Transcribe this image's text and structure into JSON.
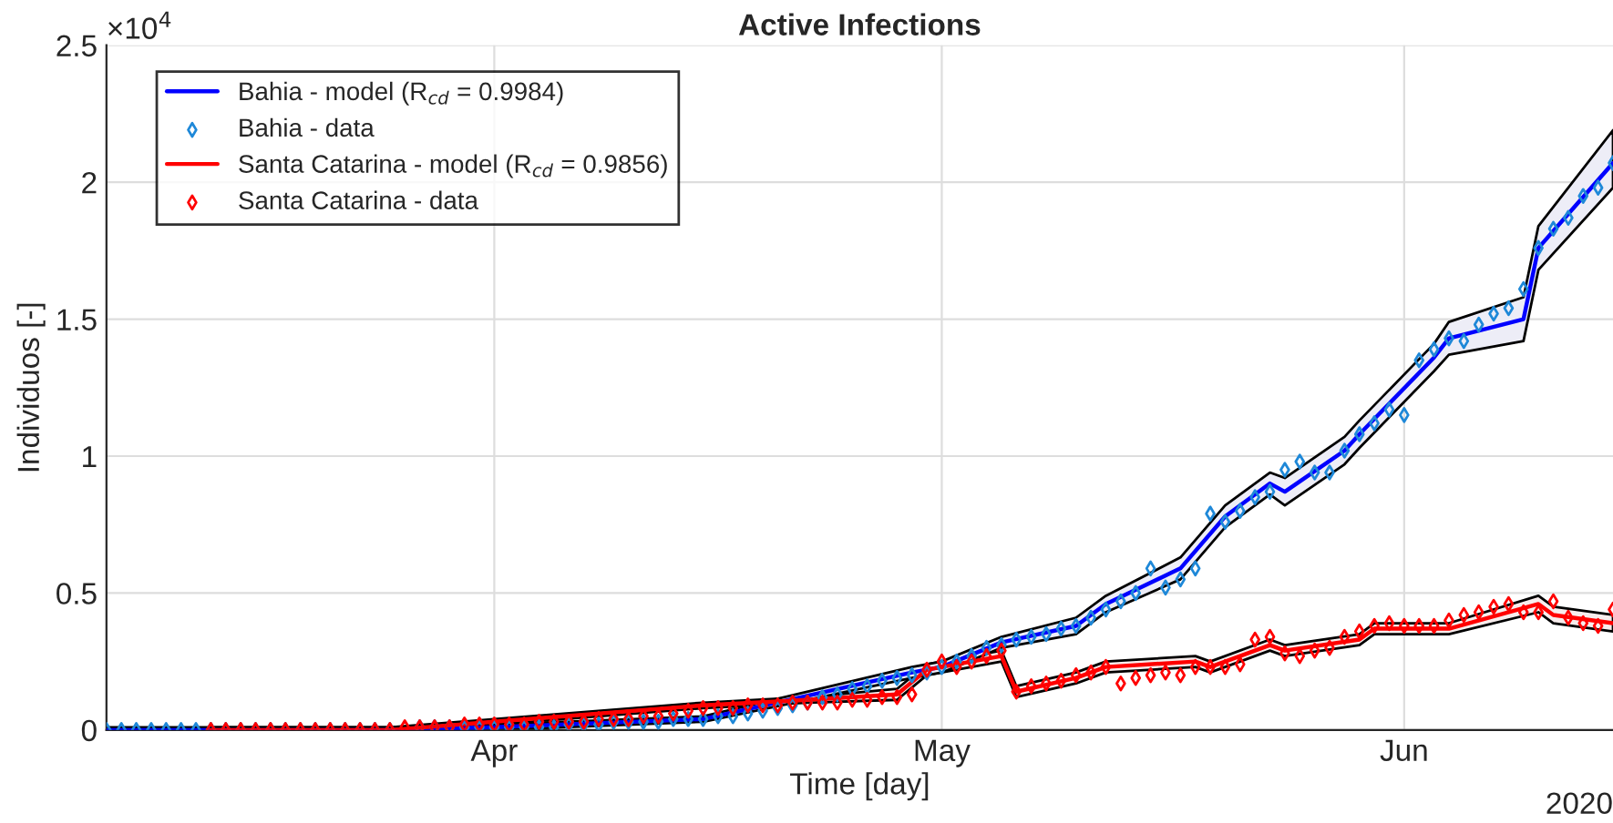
{
  "chart_data": {
    "type": "line",
    "title": "Active Infections",
    "xlabel": "Time [day]",
    "ylabel": "Individuos [-]",
    "annotations": [
      "×10$^{4}$",
      "2020"
    ],
    "xlim": [
      "2020-03-06",
      "2020-06-15"
    ],
    "xticks": [
      {
        "value": "2020-04-01",
        "label": "Apr"
      },
      {
        "value": "2020-05-01",
        "label": "May"
      },
      {
        "value": "2020-06-01",
        "label": "Jun"
      }
    ],
    "ylim": [
      0,
      2.5
    ],
    "yticks": [
      0,
      0.5,
      1,
      1.5,
      2,
      2.5
    ],
    "grid": true,
    "legend": "top left",
    "series": [
      {
        "name": "Bahia - model (R$_{cd}$ = 0.9984)",
        "type": "line",
        "marker": "none",
        "color": "#0000ff",
        "x": [
          "2020-03-06",
          "2020-03-25",
          "2020-04-01",
          "2020-04-15",
          "2020-04-29",
          "2020-05-01",
          "2020-05-05",
          "2020-05-10",
          "2020-05-12",
          "2020-05-17",
          "2020-05-20",
          "2020-05-23",
          "2020-05-24",
          "2020-05-28",
          "2020-05-29",
          "2020-06-03",
          "2020-06-04",
          "2020-06-09",
          "2020-06-10",
          "2020-06-15"
        ],
        "values": [
          0,
          0,
          0.01,
          0.04,
          0.21,
          0.23,
          0.32,
          0.38,
          0.46,
          0.59,
          0.78,
          0.9,
          0.87,
          1.02,
          1.08,
          1.36,
          1.43,
          1.5,
          1.76,
          2.07
        ],
        "lower": [
          0,
          0,
          0,
          0.03,
          0.19,
          0.21,
          0.3,
          0.35,
          0.43,
          0.55,
          0.74,
          0.86,
          0.82,
          0.97,
          1.03,
          1.31,
          1.37,
          1.42,
          1.68,
          1.98
        ],
        "upper": [
          0.01,
          0.01,
          0.02,
          0.05,
          0.23,
          0.25,
          0.34,
          0.41,
          0.49,
          0.63,
          0.82,
          0.94,
          0.92,
          1.07,
          1.13,
          1.41,
          1.49,
          1.58,
          1.84,
          2.19
        ]
      },
      {
        "name": "Bahia - data",
        "type": "scatter",
        "marker": "diamond",
        "color": "#1e88d8",
        "x": [
          "2020-03-06",
          "2020-03-07",
          "2020-03-08",
          "2020-03-09",
          "2020-03-10",
          "2020-03-11",
          "2020-03-12",
          "2020-03-13",
          "2020-03-14",
          "2020-03-15",
          "2020-03-16",
          "2020-03-17",
          "2020-03-18",
          "2020-03-19",
          "2020-03-20",
          "2020-03-21",
          "2020-03-22",
          "2020-03-23",
          "2020-03-24",
          "2020-03-25",
          "2020-03-26",
          "2020-03-27",
          "2020-03-28",
          "2020-03-29",
          "2020-03-30",
          "2020-03-31",
          "2020-04-01",
          "2020-04-02",
          "2020-04-03",
          "2020-04-04",
          "2020-04-05",
          "2020-04-06",
          "2020-04-07",
          "2020-04-08",
          "2020-04-09",
          "2020-04-10",
          "2020-04-11",
          "2020-04-12",
          "2020-04-13",
          "2020-04-14",
          "2020-04-15",
          "2020-04-16",
          "2020-04-17",
          "2020-04-18",
          "2020-04-19",
          "2020-04-20",
          "2020-04-21",
          "2020-04-22",
          "2020-04-23",
          "2020-04-24",
          "2020-04-25",
          "2020-04-26",
          "2020-04-27",
          "2020-04-28",
          "2020-04-29",
          "2020-04-30",
          "2020-05-01",
          "2020-05-02",
          "2020-05-03",
          "2020-05-04",
          "2020-05-05",
          "2020-05-06",
          "2020-05-07",
          "2020-05-08",
          "2020-05-09",
          "2020-05-10",
          "2020-05-11",
          "2020-05-12",
          "2020-05-13",
          "2020-05-14",
          "2020-05-15",
          "2020-05-16",
          "2020-05-17",
          "2020-05-18",
          "2020-05-19",
          "2020-05-20",
          "2020-05-21",
          "2020-05-22",
          "2020-05-23",
          "2020-05-24",
          "2020-05-25",
          "2020-05-26",
          "2020-05-27",
          "2020-05-28",
          "2020-05-29",
          "2020-05-30",
          "2020-05-31",
          "2020-06-01",
          "2020-06-02",
          "2020-06-03",
          "2020-06-04",
          "2020-06-05",
          "2020-06-06",
          "2020-06-07",
          "2020-06-08",
          "2020-06-09",
          "2020-06-10",
          "2020-06-11",
          "2020-06-12",
          "2020-06-13",
          "2020-06-14",
          "2020-06-15"
        ],
        "values": [
          0,
          0,
          0,
          0,
          0,
          0,
          0,
          0,
          0,
          0,
          0,
          0,
          0,
          0,
          0,
          0,
          0,
          0,
          0,
          0,
          null,
          0.01,
          0.01,
          0.01,
          0.01,
          0.01,
          0.01,
          0.01,
          0.01,
          0.01,
          0.01,
          0.02,
          0.02,
          0.02,
          0.03,
          0.03,
          0.03,
          0.03,
          0.04,
          0.04,
          0.04,
          0.05,
          0.05,
          0.06,
          0.07,
          0.08,
          0.09,
          0.1,
          0.12,
          0.13,
          0.15,
          0.16,
          0.18,
          0.19,
          0.2,
          0.21,
          0.23,
          0.25,
          0.27,
          0.3,
          0.31,
          0.33,
          0.34,
          0.35,
          0.37,
          0.38,
          0.41,
          0.44,
          0.47,
          0.5,
          0.59,
          0.52,
          0.55,
          0.59,
          0.79,
          0.76,
          0.8,
          0.85,
          0.87,
          0.95,
          0.98,
          0.94,
          0.94,
          1.02,
          1.08,
          1.12,
          1.17,
          1.15,
          1.35,
          1.39,
          1.43,
          1.42,
          1.48,
          1.52,
          1.54,
          1.61,
          1.76,
          1.83,
          1.87,
          1.95,
          1.98,
          2.07
        ]
      },
      {
        "name": "Santa Catarina - model (R$_{cd}$ = 0.9856)",
        "type": "line",
        "marker": "none",
        "color": "#ff0000",
        "x": [
          "2020-03-13",
          "2020-03-25",
          "2020-04-01",
          "2020-04-15",
          "2020-04-22",
          "2020-04-28",
          "2020-04-30",
          "2020-05-05",
          "2020-05-06",
          "2020-05-10",
          "2020-05-12",
          "2020-05-18",
          "2020-05-19",
          "2020-05-23",
          "2020-05-24",
          "2020-05-29",
          "2020-05-30",
          "2020-06-04",
          "2020-06-10",
          "2020-06-11",
          "2020-06-15"
        ],
        "values": [
          0,
          0,
          0.03,
          0.09,
          0.11,
          0.13,
          0.22,
          0.27,
          0.14,
          0.19,
          0.23,
          0.25,
          0.23,
          0.31,
          0.29,
          0.33,
          0.37,
          0.37,
          0.46,
          0.42,
          0.39
        ],
        "lower": [
          0,
          0,
          0.02,
          0.08,
          0.1,
          0.11,
          0.2,
          0.25,
          0.12,
          0.17,
          0.21,
          0.23,
          0.21,
          0.29,
          0.27,
          0.31,
          0.35,
          0.35,
          0.43,
          0.39,
          0.36
        ],
        "upper": [
          0.01,
          0.01,
          0.04,
          0.1,
          0.12,
          0.15,
          0.24,
          0.29,
          0.16,
          0.21,
          0.25,
          0.27,
          0.25,
          0.33,
          0.31,
          0.35,
          0.39,
          0.39,
          0.49,
          0.45,
          0.42
        ]
      },
      {
        "name": "Santa Catarina - data",
        "type": "scatter",
        "marker": "diamond",
        "color": "#ff0000",
        "x": [
          "2020-03-13",
          "2020-03-14",
          "2020-03-15",
          "2020-03-16",
          "2020-03-17",
          "2020-03-18",
          "2020-03-19",
          "2020-03-20",
          "2020-03-21",
          "2020-03-22",
          "2020-03-23",
          "2020-03-24",
          "2020-03-25",
          "2020-03-26",
          "2020-03-27",
          "2020-03-28",
          "2020-03-29",
          "2020-03-30",
          "2020-03-31",
          "2020-04-01",
          "2020-04-02",
          "2020-04-03",
          "2020-04-04",
          "2020-04-05",
          "2020-04-06",
          "2020-04-07",
          "2020-04-08",
          "2020-04-09",
          "2020-04-10",
          "2020-04-11",
          "2020-04-12",
          "2020-04-13",
          "2020-04-14",
          "2020-04-15",
          "2020-04-16",
          "2020-04-17",
          "2020-04-18",
          "2020-04-19",
          "2020-04-20",
          "2020-04-21",
          "2020-04-22",
          "2020-04-23",
          "2020-04-24",
          "2020-04-25",
          "2020-04-26",
          "2020-04-27",
          "2020-04-28",
          "2020-04-29",
          "2020-04-30",
          "2020-05-01",
          "2020-05-02",
          "2020-05-03",
          "2020-05-04",
          "2020-05-05",
          "2020-05-06",
          "2020-05-07",
          "2020-05-08",
          "2020-05-09",
          "2020-05-10",
          "2020-05-11",
          "2020-05-12",
          "2020-05-13",
          "2020-05-14",
          "2020-05-15",
          "2020-05-16",
          "2020-05-17",
          "2020-05-18",
          "2020-05-19",
          "2020-05-20",
          "2020-05-21",
          "2020-05-22",
          "2020-05-23",
          "2020-05-24",
          "2020-05-25",
          "2020-05-26",
          "2020-05-27",
          "2020-05-28",
          "2020-05-29",
          "2020-05-30",
          "2020-05-31",
          "2020-06-01",
          "2020-06-02",
          "2020-06-03",
          "2020-06-04",
          "2020-06-05",
          "2020-06-06",
          "2020-06-07",
          "2020-06-08",
          "2020-06-09",
          "2020-06-10",
          "2020-06-11",
          "2020-06-12",
          "2020-06-13",
          "2020-06-14",
          "2020-06-15"
        ],
        "values": [
          0,
          0,
          0,
          0,
          0,
          0,
          0,
          0,
          0,
          0,
          0,
          0,
          0,
          0.01,
          0.01,
          0.01,
          0.01,
          0.02,
          0.02,
          0.02,
          0.02,
          0.02,
          0.03,
          0.03,
          0.03,
          0.03,
          0.04,
          0.04,
          0.04,
          0.05,
          0.05,
          0.06,
          0.07,
          0.08,
          0.08,
          0.08,
          0.09,
          0.09,
          0.09,
          0.1,
          0.1,
          0.1,
          0.1,
          0.11,
          0.11,
          0.12,
          0.12,
          0.13,
          0.22,
          0.25,
          0.23,
          0.25,
          0.27,
          0.29,
          0.14,
          0.16,
          0.17,
          0.18,
          0.2,
          0.21,
          0.23,
          0.17,
          0.19,
          0.2,
          0.21,
          0.2,
          0.23,
          0.23,
          0.23,
          0.24,
          0.33,
          0.34,
          0.28,
          0.27,
          0.29,
          0.3,
          0.34,
          0.36,
          0.38,
          0.39,
          0.38,
          0.38,
          0.38,
          0.4,
          0.42,
          0.43,
          0.45,
          0.46,
          0.43,
          0.43,
          0.47,
          0.41,
          0.39,
          0.38,
          0.44
        ]
      }
    ]
  }
}
